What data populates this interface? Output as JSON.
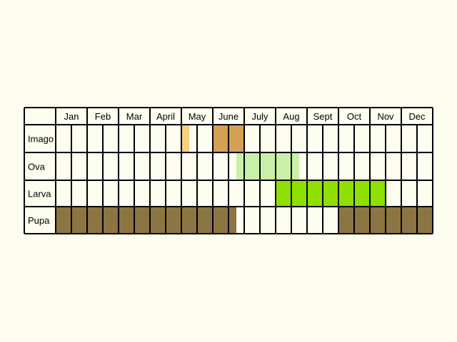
{
  "months": [
    "Jan",
    "Feb",
    "Mar",
    "April",
    "May",
    "June",
    "July",
    "Aug",
    "Sept",
    "Oct",
    "Nov",
    "Dec"
  ],
  "rows": [
    {
      "label": "Imago",
      "fills": [
        {
          "from": 8,
          "to": 8.5,
          "color": "#f5d080"
        },
        {
          "from": 10,
          "to": 12,
          "color": "#d4a055"
        }
      ]
    },
    {
      "label": "Ova",
      "fills": [
        {
          "from": 11.5,
          "to": 15.5,
          "color": "#c8f0a8"
        }
      ]
    },
    {
      "label": "Larva",
      "fills": [
        {
          "from": 14,
          "to": 21,
          "color": "#8ee000"
        }
      ]
    },
    {
      "label": "Pupa",
      "fills": [
        {
          "from": 0,
          "to": 11.5,
          "color": "#8b7543"
        },
        {
          "from": 18,
          "to": 24,
          "color": "#8b7543"
        }
      ]
    }
  ],
  "colors": {
    "background": "#fdfdf0",
    "cell": "#fdfdf0",
    "grid": "#000000"
  }
}
